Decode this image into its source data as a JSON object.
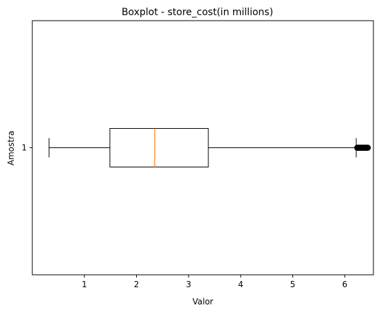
{
  "chart_data": {
    "type": "boxplot",
    "title": "Boxplot - store_cost(in millions)",
    "xlabel": "Valor",
    "ylabel": "Amostra",
    "xlim": [
      0.0,
      6.55
    ],
    "xticks": [
      1,
      2,
      3,
      4,
      5,
      6
    ],
    "categories": [
      "1"
    ],
    "boxes": [
      {
        "label": "1",
        "whisker_low": 0.32,
        "q1": 1.49,
        "median": 2.35,
        "q3": 3.38,
        "whisker_high": 6.22,
        "outliers": [
          6.24,
          6.26,
          6.28,
          6.3,
          6.32,
          6.34,
          6.36,
          6.38,
          6.4,
          6.42,
          6.44
        ]
      }
    ],
    "colors": {
      "box": "#000000",
      "median": "#ff7f0e",
      "outlier": "#000000"
    },
    "grid": false
  }
}
